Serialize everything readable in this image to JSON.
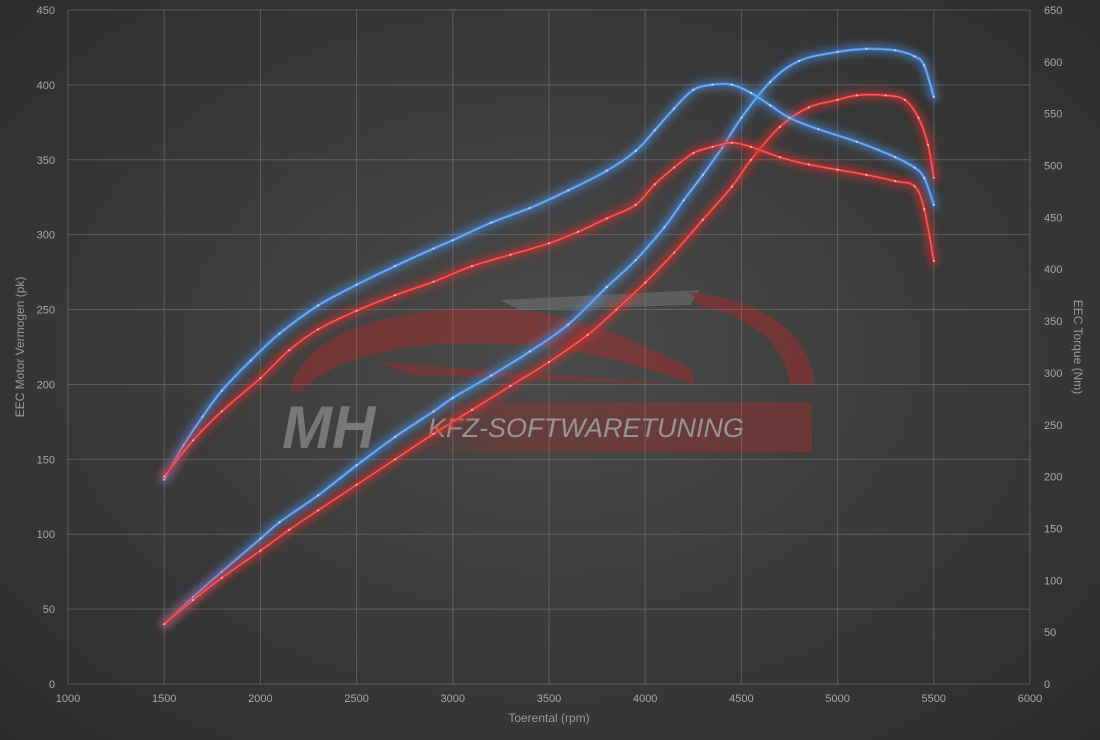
{
  "chart_data": {
    "type": "line",
    "title": "",
    "xlabel": "Toerental (rpm)",
    "ylabel": "EEC Motor Vermogen (pk)",
    "y2label": "EEC Torque (Nm)",
    "xlim": [
      1000,
      6000
    ],
    "ylim": [
      0,
      450
    ],
    "y2lim": [
      0,
      650
    ],
    "xticks": [
      1000,
      1500,
      2000,
      2500,
      3000,
      3500,
      4000,
      4500,
      5000,
      5500,
      6000
    ],
    "yticks": [
      0,
      50,
      100,
      150,
      200,
      250,
      300,
      350,
      400,
      450
    ],
    "y2ticks": [
      0,
      50,
      100,
      150,
      200,
      250,
      300,
      350,
      400,
      450,
      500,
      550,
      600,
      650
    ],
    "grid": true,
    "legend": "none",
    "colors": {
      "tuned": "#4a90e8",
      "stock": "#e03030"
    },
    "series": [
      {
        "key": "tuned_power",
        "axis": "left",
        "color": "#4a90e8",
        "x": [
          1500,
          1650,
          1800,
          2000,
          2100,
          2300,
          2500,
          2700,
          2900,
          3000,
          3200,
          3400,
          3600,
          3800,
          3950,
          4100,
          4200,
          4300,
          4400,
          4500,
          4650,
          4800,
          5000,
          5150,
          5300,
          5400,
          5450,
          5500
        ],
        "y": [
          40,
          58,
          75,
          97,
          108,
          126,
          146,
          165,
          182,
          191,
          206,
          222,
          240,
          265,
          283,
          305,
          323,
          340,
          358,
          378,
          402,
          416,
          422,
          424,
          423,
          419,
          413,
          392
        ]
      },
      {
        "key": "stock_power",
        "axis": "left",
        "color": "#e03030",
        "x": [
          1500,
          1650,
          1800,
          2000,
          2150,
          2300,
          2500,
          2700,
          2900,
          3100,
          3300,
          3500,
          3700,
          3850,
          4000,
          4150,
          4300,
          4450,
          4550,
          4700,
          4850,
          5000,
          5100,
          5250,
          5350,
          5420,
          5470,
          5500
        ],
        "y": [
          40,
          56,
          71,
          89,
          103,
          116,
          133,
          150,
          167,
          183,
          199,
          215,
          233,
          250,
          268,
          288,
          310,
          332,
          350,
          372,
          385,
          390,
          393,
          393,
          390,
          378,
          360,
          338
        ]
      },
      {
        "key": "tuned_torque",
        "axis": "right",
        "color": "#4a90e8",
        "x": [
          1500,
          1600,
          1700,
          1800,
          1950,
          2100,
          2300,
          2500,
          2700,
          2900,
          3000,
          3200,
          3400,
          3600,
          3800,
          3950,
          4050,
          4150,
          4250,
          4350,
          4450,
          4550,
          4650,
          4750,
          4900,
          5100,
          5300,
          5400,
          5450,
          5500
        ],
        "y": [
          197,
          230,
          258,
          283,
          312,
          338,
          365,
          385,
          403,
          420,
          428,
          445,
          459,
          476,
          495,
          514,
          534,
          555,
          573,
          578,
          578,
          570,
          558,
          546,
          535,
          523,
          508,
          498,
          488,
          462
        ]
      },
      {
        "key": "stock_torque",
        "axis": "right",
        "color": "#e03030",
        "x": [
          1500,
          1650,
          1800,
          2000,
          2150,
          2300,
          2500,
          2700,
          2900,
          3100,
          3300,
          3500,
          3650,
          3800,
          3950,
          4050,
          4150,
          4250,
          4350,
          4450,
          4550,
          4700,
          4850,
          5000,
          5150,
          5300,
          5400,
          5450,
          5500
        ],
        "y": [
          200,
          235,
          263,
          295,
          322,
          342,
          360,
          375,
          388,
          403,
          414,
          425,
          436,
          449,
          462,
          482,
          498,
          512,
          518,
          522,
          518,
          508,
          501,
          496,
          491,
          485,
          480,
          458,
          408
        ]
      }
    ]
  }
}
